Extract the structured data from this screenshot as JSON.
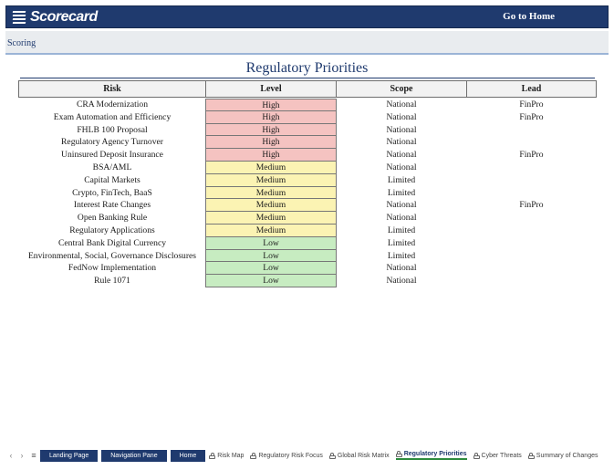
{
  "header": {
    "logo_text": "Scorecard",
    "go_home_label": "Go to Home"
  },
  "subheader": {
    "label": "Scoring"
  },
  "page": {
    "title": "Regulatory Priorities"
  },
  "table": {
    "columns": [
      "Risk",
      "Level",
      "Scope",
      "Lead"
    ],
    "rows": [
      {
        "risk": "CRA Modernization",
        "level": "High",
        "scope": "National",
        "lead": "FinPro"
      },
      {
        "risk": "Exam Automation and Efficiency",
        "level": "High",
        "scope": "National",
        "lead": "FinPro"
      },
      {
        "risk": "FHLB 100 Proposal",
        "level": "High",
        "scope": "National",
        "lead": ""
      },
      {
        "risk": "Regulatory Agency Turnover",
        "level": "High",
        "scope": "National",
        "lead": ""
      },
      {
        "risk": "Uninsured Deposit Insurance",
        "level": "High",
        "scope": "National",
        "lead": "FinPro"
      },
      {
        "risk": "BSA/AML",
        "level": "Medium",
        "scope": "National",
        "lead": ""
      },
      {
        "risk": "Capital Markets",
        "level": "Medium",
        "scope": "Limited",
        "lead": ""
      },
      {
        "risk": "Crypto, FinTech, BaaS",
        "level": "Medium",
        "scope": "Limited",
        "lead": ""
      },
      {
        "risk": "Interest Rate Changes",
        "level": "Medium",
        "scope": "National",
        "lead": "FinPro"
      },
      {
        "risk": "Open Banking Rule",
        "level": "Medium",
        "scope": "National",
        "lead": ""
      },
      {
        "risk": "Regulatory Applications",
        "level": "Medium",
        "scope": "Limited",
        "lead": ""
      },
      {
        "risk": "Central Bank Digital Currency",
        "level": "Low",
        "scope": "Limited",
        "lead": ""
      },
      {
        "risk": "Environmental, Social, Governance Disclosures",
        "level": "Low",
        "scope": "Limited",
        "lead": ""
      },
      {
        "risk": "FedNow Implementation",
        "level": "Low",
        "scope": "National",
        "lead": ""
      },
      {
        "risk": "Rule 1071",
        "level": "Low",
        "scope": "National",
        "lead": ""
      }
    ]
  },
  "level_colors": {
    "High": "#f5c3c1",
    "Medium": "#fbf3b3",
    "Low": "#c7ecc1"
  },
  "tabbar": {
    "buttons": [
      "Landing Page",
      "Navigation Pane",
      "Home"
    ],
    "sheets": [
      {
        "label": "Risk Map",
        "active": false
      },
      {
        "label": "Regulatory Risk Focus",
        "active": false
      },
      {
        "label": "Global Risk Matrix",
        "active": false
      },
      {
        "label": "Regulatory Priorities",
        "active": true
      },
      {
        "label": "Cyber Threats",
        "active": false
      },
      {
        "label": "Summary of Changes",
        "active": false
      }
    ],
    "icons": {
      "prev": "chevron-left-icon",
      "next": "chevron-right-icon",
      "menu": "hamburger-menu-icon",
      "lock": "lock-icon"
    }
  }
}
